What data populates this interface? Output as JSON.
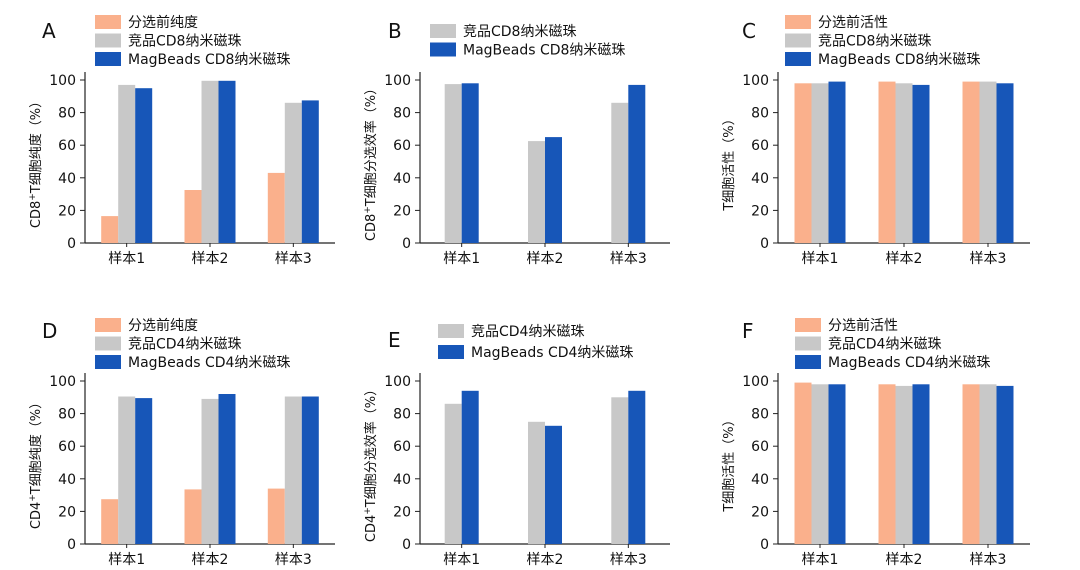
{
  "colors": {
    "pre_sort": "#FAB08C",
    "competitor": "#C8C8C8",
    "magbeads": "#1756B8",
    "axis": "#222222"
  },
  "chart_data": [
    {
      "panel": "A",
      "type": "bar",
      "categories": [
        "样本1",
        "样本2",
        "样本3"
      ],
      "series": [
        {
          "name": "分选前纯度",
          "color_key": "pre_sort",
          "values": [
            16.5,
            32.5,
            43
          ]
        },
        {
          "name": "竞品CD8纳米磁珠",
          "color_key": "competitor",
          "values": [
            97,
            99.5,
            86
          ]
        },
        {
          "name": "MagBeads CD8纳米磁珠",
          "color_key": "magbeads",
          "values": [
            95,
            99.5,
            87.5
          ]
        }
      ],
      "ylabel": {
        "pre": "CD8",
        "sup": "+",
        "post": "T细胞纯度（%）"
      },
      "yticks": [
        0,
        20,
        40,
        60,
        80,
        100
      ],
      "ylim": [
        0,
        100
      ],
      "legend_position": "top"
    },
    {
      "panel": "B",
      "type": "bar",
      "categories": [
        "样本1",
        "样本2",
        "样本3"
      ],
      "series": [
        {
          "name": "竞品CD8纳米磁珠",
          "color_key": "competitor",
          "values": [
            97.5,
            62.5,
            86
          ]
        },
        {
          "name": "MagBeads CD8纳米磁珠",
          "color_key": "magbeads",
          "values": [
            98,
            65,
            97
          ]
        }
      ],
      "ylabel": {
        "pre": "CD8",
        "sup": "+",
        "post": "T细胞分选效率（%）"
      },
      "yticks": [
        0,
        20,
        40,
        60,
        80,
        100
      ],
      "ylim": [
        0,
        100
      ],
      "legend_position": "top"
    },
    {
      "panel": "C",
      "type": "bar",
      "categories": [
        "样本1",
        "样本2",
        "样本3"
      ],
      "series": [
        {
          "name": "分选前活性",
          "color_key": "pre_sort",
          "values": [
            98,
            99,
            99
          ]
        },
        {
          "name": "竞品CD8纳米磁珠",
          "color_key": "competitor",
          "values": [
            98,
            98,
            99
          ]
        },
        {
          "name": "MagBeads CD8纳米磁珠",
          "color_key": "magbeads",
          "values": [
            99,
            97,
            98
          ]
        }
      ],
      "ylabel": {
        "pre": "",
        "sup": "",
        "post": "T细胞活性（%）"
      },
      "yticks": [
        0,
        20,
        40,
        60,
        80,
        100
      ],
      "ylim": [
        0,
        100
      ],
      "legend_position": "top"
    },
    {
      "panel": "D",
      "type": "bar",
      "categories": [
        "样本1",
        "样本2",
        "样本3"
      ],
      "series": [
        {
          "name": "分选前纯度",
          "color_key": "pre_sort",
          "values": [
            27.5,
            33.5,
            34
          ]
        },
        {
          "name": "竞品CD4纳米磁珠",
          "color_key": "competitor",
          "values": [
            90.5,
            89,
            90.5
          ]
        },
        {
          "name": "MagBeads CD4纳米磁珠",
          "color_key": "magbeads",
          "values": [
            89.5,
            92,
            90.5
          ]
        }
      ],
      "ylabel": {
        "pre": "CD4",
        "sup": "+",
        "post": "T细胞纯度（%）"
      },
      "yticks": [
        0,
        20,
        40,
        60,
        80,
        100
      ],
      "ylim": [
        0,
        100
      ],
      "legend_position": "top"
    },
    {
      "panel": "E",
      "type": "bar",
      "categories": [
        "样本1",
        "样本2",
        "样本3"
      ],
      "series": [
        {
          "name": "竞品CD4纳米磁珠",
          "color_key": "competitor",
          "values": [
            86,
            75,
            90
          ]
        },
        {
          "name": "MagBeads CD4纳米磁珠",
          "color_key": "magbeads",
          "values": [
            94,
            72.5,
            94
          ]
        }
      ],
      "ylabel": {
        "pre": "CD4",
        "sup": "+",
        "post": "T细胞分选效率（%）"
      },
      "yticks": [
        0,
        20,
        40,
        60,
        80,
        100
      ],
      "ylim": [
        0,
        100
      ],
      "legend_position": "top"
    },
    {
      "panel": "F",
      "type": "bar",
      "categories": [
        "样本1",
        "样本2",
        "样本3"
      ],
      "series": [
        {
          "name": "分选前活性",
          "color_key": "pre_sort",
          "values": [
            99,
            98,
            98
          ]
        },
        {
          "name": "竞品CD4纳米磁珠",
          "color_key": "competitor",
          "values": [
            98,
            97,
            98
          ]
        },
        {
          "name": "MagBeads CD4纳米磁珠",
          "color_key": "magbeads",
          "values": [
            98,
            98,
            97
          ]
        }
      ],
      "ylabel": {
        "pre": "",
        "sup": "",
        "post": "T细胞活性（%）"
      },
      "yticks": [
        0,
        20,
        40,
        60,
        80,
        100
      ],
      "ylim": [
        0,
        100
      ],
      "legend_position": "top"
    }
  ]
}
